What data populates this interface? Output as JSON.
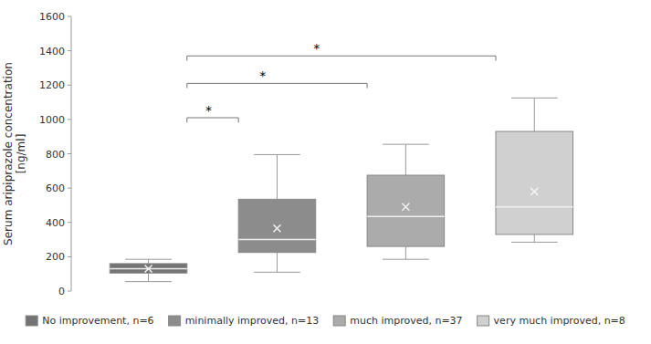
{
  "chart_data": {
    "type": "box",
    "ylabel": "Serum aripiprazole concentration\n[ng/ml]",
    "ylim": [
      0,
      1600
    ],
    "yticks": [
      0,
      200,
      400,
      600,
      800,
      1000,
      1200,
      1400,
      1600
    ],
    "series": [
      {
        "name": "No improvement, n=6",
        "color": "#737373",
        "whislo": 55,
        "q1": 105,
        "med": 130,
        "q3": 160,
        "whishi": 185,
        "mean": 130
      },
      {
        "name": "minimally improved, n=13",
        "color": "#8c8c8c",
        "whislo": 110,
        "q1": 225,
        "med": 300,
        "q3": 535,
        "whishi": 795,
        "mean": 365
      },
      {
        "name": "much improved, n=37",
        "color": "#ababab",
        "whislo": 185,
        "q1": 260,
        "med": 435,
        "q3": 675,
        "whishi": 855,
        "mean": 490
      },
      {
        "name": "very much improved, n=8",
        "color": "#d0d0d0",
        "whislo": 285,
        "q1": 330,
        "med": 490,
        "q3": 930,
        "whishi": 1125,
        "mean": 580
      }
    ],
    "annotations": [
      {
        "x1": 0,
        "x2": 1,
        "y": 1010,
        "label": "*"
      },
      {
        "x1": 0,
        "x2": 2,
        "y": 1210,
        "label": "*"
      },
      {
        "x1": 0,
        "x2": 3,
        "y": 1370,
        "label": "*"
      }
    ],
    "legend": "bottom",
    "grid": false,
    "tick_labels": "y"
  }
}
